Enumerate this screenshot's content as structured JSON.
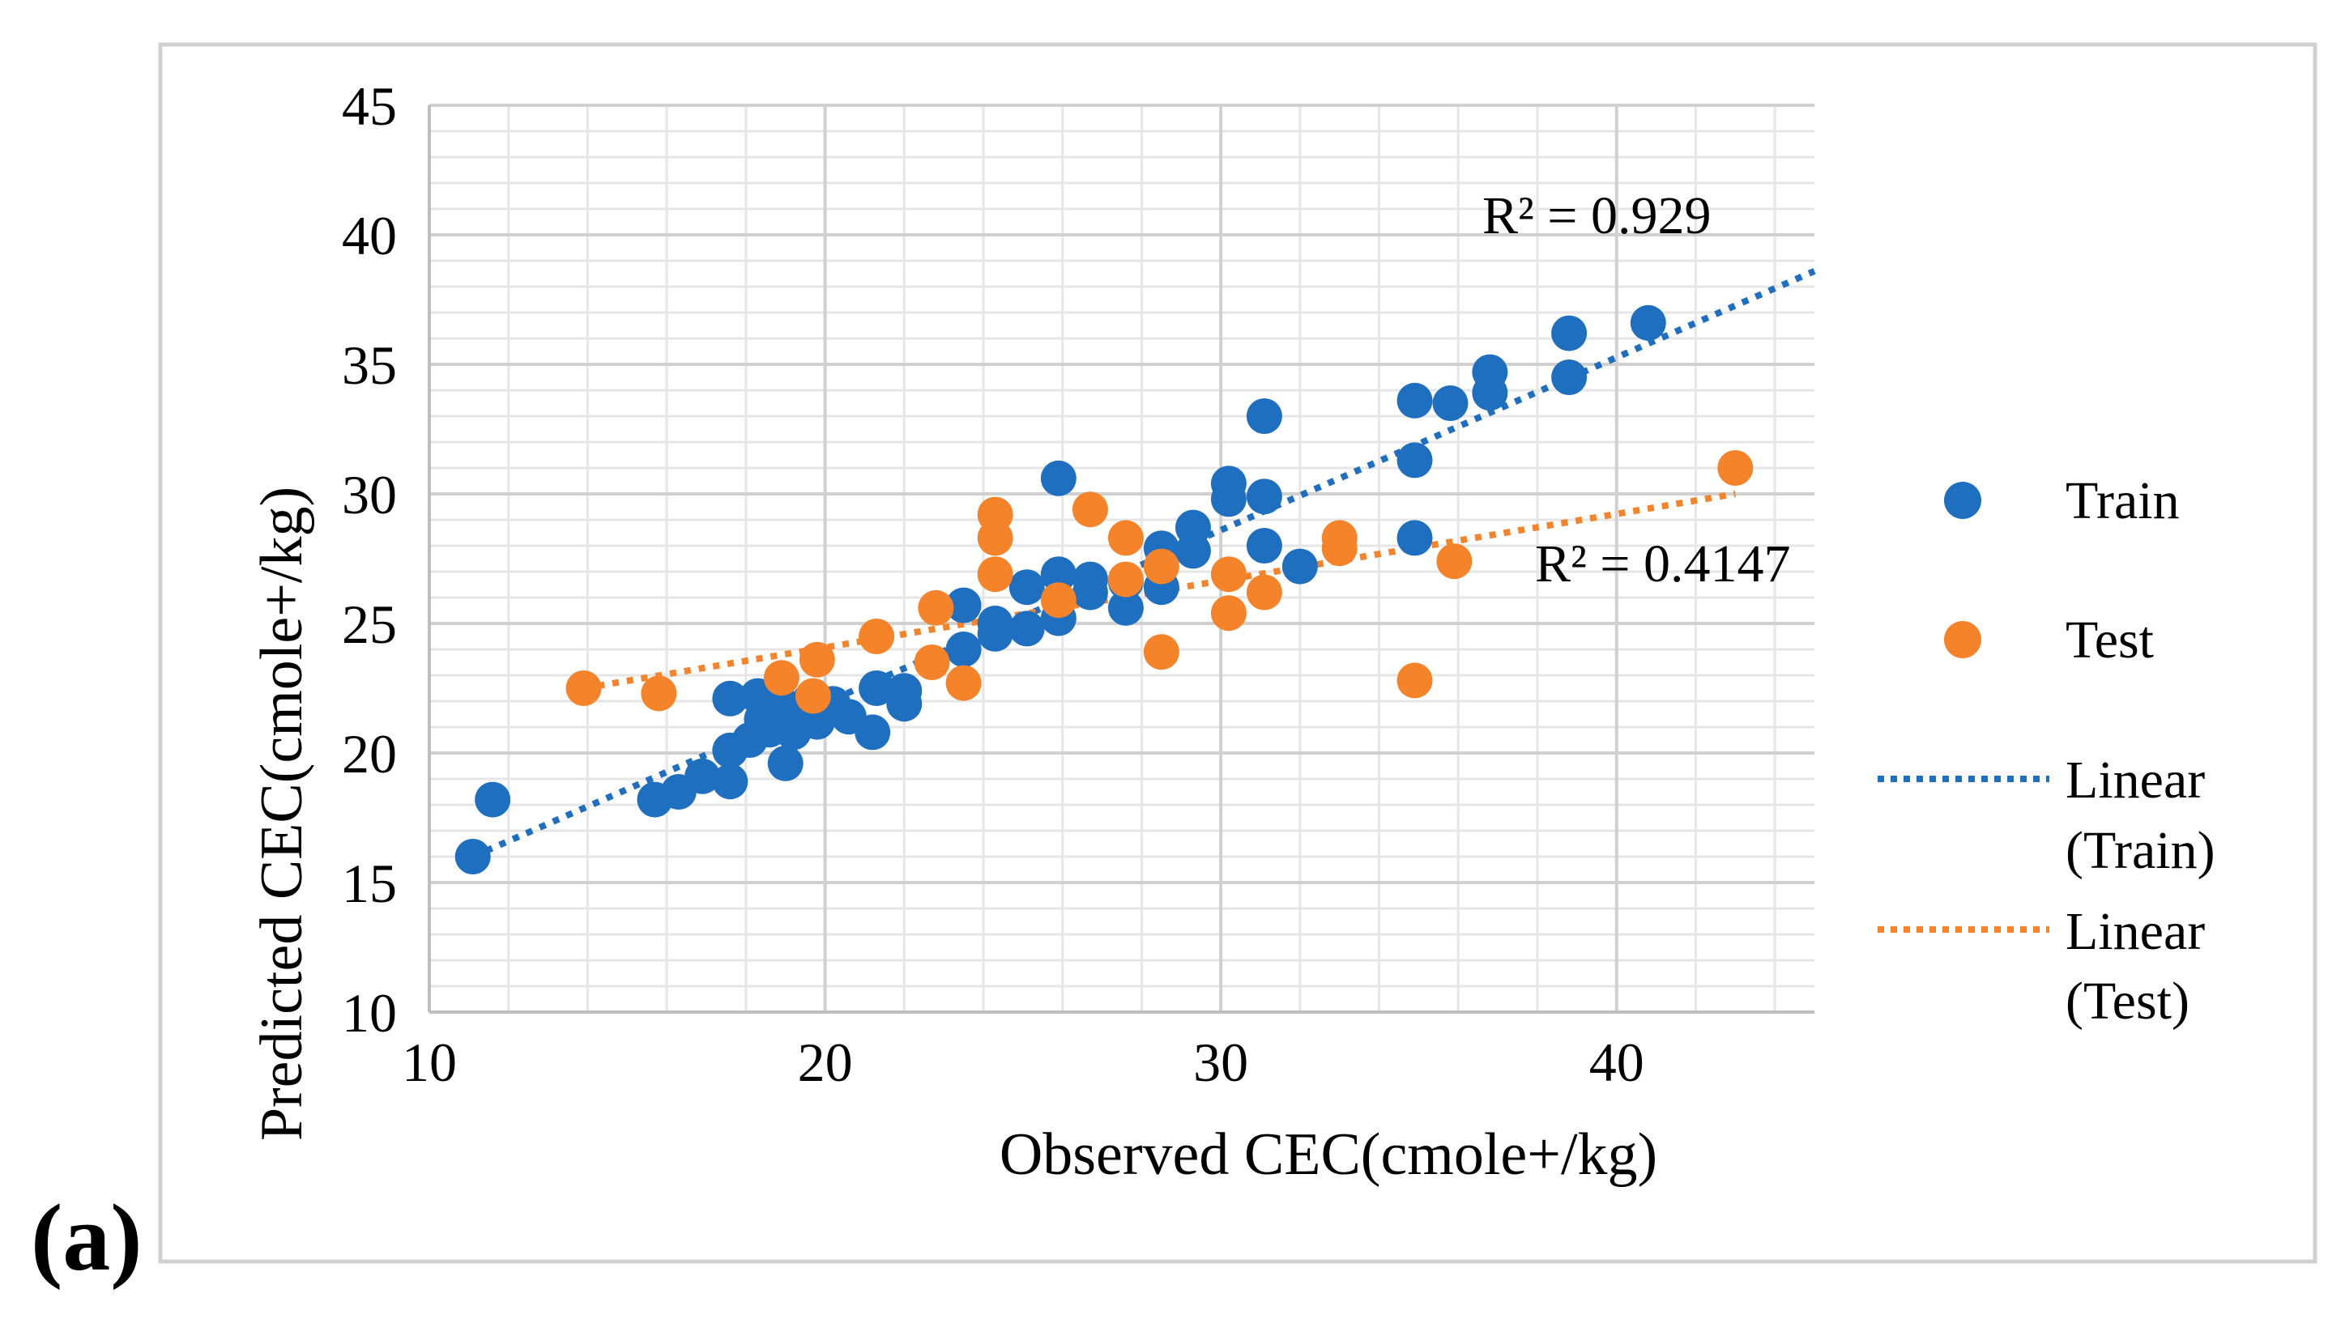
{
  "panel_label": "(a)",
  "chart_data": {
    "type": "scatter",
    "xlabel": "Observed CEC(cmole+/kg)",
    "ylabel": "Predicted CEC(cmole+/kg)",
    "xlim": [
      10,
      45
    ],
    "ylim": [
      10,
      45
    ],
    "x_ticks": [
      "10",
      "20",
      "30",
      "40"
    ],
    "y_ticks": [
      "10",
      "15",
      "20",
      "25",
      "30",
      "35",
      "40",
      "45"
    ],
    "grid": true,
    "legend_position": "right",
    "series": [
      {
        "name": "Train",
        "color": "#1F6FC0",
        "points": [
          [
            11.1,
            16.0
          ],
          [
            11.6,
            18.2
          ],
          [
            15.7,
            18.2
          ],
          [
            16.3,
            18.5
          ],
          [
            16.9,
            19.1
          ],
          [
            17.6,
            18.9
          ],
          [
            17.6,
            20.1
          ],
          [
            17.6,
            22.1
          ],
          [
            18.1,
            20.5
          ],
          [
            18.3,
            22.2
          ],
          [
            18.4,
            21.3
          ],
          [
            18.6,
            20.9
          ],
          [
            18.8,
            22.1
          ],
          [
            18.9,
            21.5
          ],
          [
            19.0,
            19.6
          ],
          [
            19.2,
            20.8
          ],
          [
            19.4,
            21.6
          ],
          [
            19.6,
            22.0
          ],
          [
            19.8,
            21.2
          ],
          [
            20.2,
            21.9
          ],
          [
            20.6,
            21.4
          ],
          [
            21.2,
            20.8
          ],
          [
            21.3,
            22.5
          ],
          [
            22.0,
            21.9
          ],
          [
            22.0,
            22.4
          ],
          [
            23.5,
            24.0
          ],
          [
            23.5,
            25.7
          ],
          [
            24.3,
            24.6
          ],
          [
            24.3,
            25.0
          ],
          [
            25.1,
            24.8
          ],
          [
            25.1,
            26.4
          ],
          [
            25.9,
            25.2
          ],
          [
            25.9,
            26.9
          ],
          [
            25.9,
            30.6
          ],
          [
            26.7,
            26.2
          ],
          [
            26.7,
            26.7
          ],
          [
            27.6,
            25.6
          ],
          [
            27.6,
            26.6
          ],
          [
            28.5,
            26.4
          ],
          [
            28.5,
            27.9
          ],
          [
            29.3,
            27.8
          ],
          [
            29.3,
            28.7
          ],
          [
            30.2,
            29.8
          ],
          [
            30.2,
            30.4
          ],
          [
            31.1,
            28.0
          ],
          [
            31.1,
            29.9
          ],
          [
            31.1,
            33.0
          ],
          [
            32.0,
            27.2
          ],
          [
            34.9,
            28.3
          ],
          [
            34.9,
            31.3
          ],
          [
            34.9,
            33.6
          ],
          [
            35.8,
            33.5
          ],
          [
            36.8,
            33.9
          ],
          [
            36.8,
            34.7
          ],
          [
            38.8,
            34.5
          ],
          [
            38.8,
            36.2
          ],
          [
            40.8,
            36.6
          ]
        ]
      },
      {
        "name": "Test",
        "color": "#F5832A",
        "points": [
          [
            13.9,
            22.5
          ],
          [
            15.8,
            22.3
          ],
          [
            18.9,
            22.9
          ],
          [
            19.7,
            22.2
          ],
          [
            19.8,
            23.6
          ],
          [
            21.3,
            24.5
          ],
          [
            22.7,
            23.5
          ],
          [
            22.8,
            25.6
          ],
          [
            23.5,
            22.7
          ],
          [
            24.3,
            26.9
          ],
          [
            24.3,
            28.3
          ],
          [
            24.3,
            29.2
          ],
          [
            25.9,
            25.9
          ],
          [
            26.7,
            29.4
          ],
          [
            27.6,
            26.7
          ],
          [
            27.6,
            28.3
          ],
          [
            28.5,
            23.9
          ],
          [
            28.5,
            27.2
          ],
          [
            30.2,
            25.4
          ],
          [
            30.2,
            26.9
          ],
          [
            31.1,
            26.2
          ],
          [
            33.0,
            27.9
          ],
          [
            33.0,
            28.3
          ],
          [
            34.9,
            22.8
          ],
          [
            35.9,
            27.4
          ],
          [
            43.0,
            31.0
          ]
        ]
      }
    ],
    "trendlines": [
      {
        "name": "Linear\n(Train)",
        "legend_lines": [
          "Linear",
          "(Train)"
        ],
        "color": "#1F6FC0",
        "x_range": [
          11.1,
          45
        ],
        "y_range": [
          16.0,
          38.6
        ],
        "r2_label": "R² = 0.929"
      },
      {
        "name": "Linear\n(Test)",
        "legend_lines": [
          "Linear",
          "(Test)"
        ],
        "color": "#F5832A",
        "x_range": [
          13.9,
          43.0
        ],
        "y_range": [
          22.5,
          30.0
        ],
        "r2_label": "R² = 0.4147"
      }
    ]
  }
}
